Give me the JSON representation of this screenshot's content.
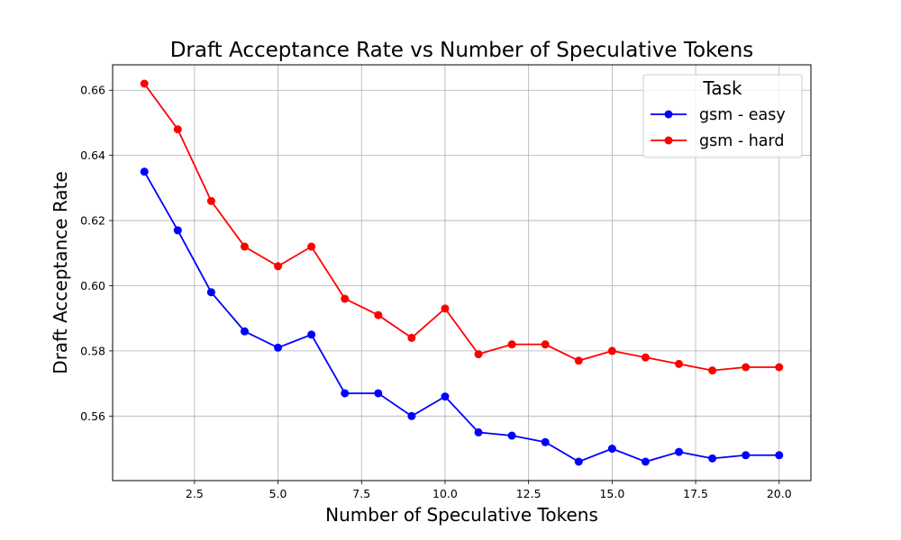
{
  "chart_data": {
    "type": "line",
    "title": "Draft Acceptance Rate vs Number of Speculative Tokens",
    "xlabel": "Number of Speculative Tokens",
    "ylabel": "Draft Acceptance Rate",
    "x": [
      1,
      2,
      3,
      4,
      5,
      6,
      7,
      8,
      9,
      10,
      11,
      12,
      13,
      14,
      15,
      16,
      17,
      18,
      19,
      20
    ],
    "series": [
      {
        "name": "gsm - easy",
        "color": "#0000ff",
        "values": [
          0.635,
          0.617,
          0.598,
          0.586,
          0.581,
          0.585,
          0.567,
          0.567,
          0.56,
          0.566,
          0.555,
          0.554,
          0.552,
          0.546,
          0.55,
          0.546,
          0.549,
          0.547,
          0.548,
          0.548
        ]
      },
      {
        "name": "gsm - hard",
        "color": "#ff0000",
        "values": [
          0.662,
          0.648,
          0.626,
          0.612,
          0.606,
          0.612,
          0.596,
          0.591,
          0.584,
          0.593,
          0.579,
          0.582,
          0.582,
          0.577,
          0.58,
          0.578,
          0.576,
          0.574,
          0.575,
          0.575
        ]
      }
    ],
    "xticks": [
      "2.5",
      "5.0",
      "7.5",
      "10.0",
      "12.5",
      "15.0",
      "17.5",
      "20.0"
    ],
    "xtick_values": [
      2.5,
      5.0,
      7.5,
      10.0,
      12.5,
      15.0,
      17.5,
      20.0
    ],
    "yticks": [
      "0.56",
      "0.58",
      "0.60",
      "0.62",
      "0.64",
      "0.66"
    ],
    "ytick_values": [
      0.56,
      0.58,
      0.6,
      0.62,
      0.64,
      0.66
    ],
    "xlim": [
      0.05,
      20.95
    ],
    "ylim": [
      0.5402,
      0.6678
    ],
    "grid": true,
    "legend": {
      "title": "Task",
      "position": "top-right"
    }
  }
}
